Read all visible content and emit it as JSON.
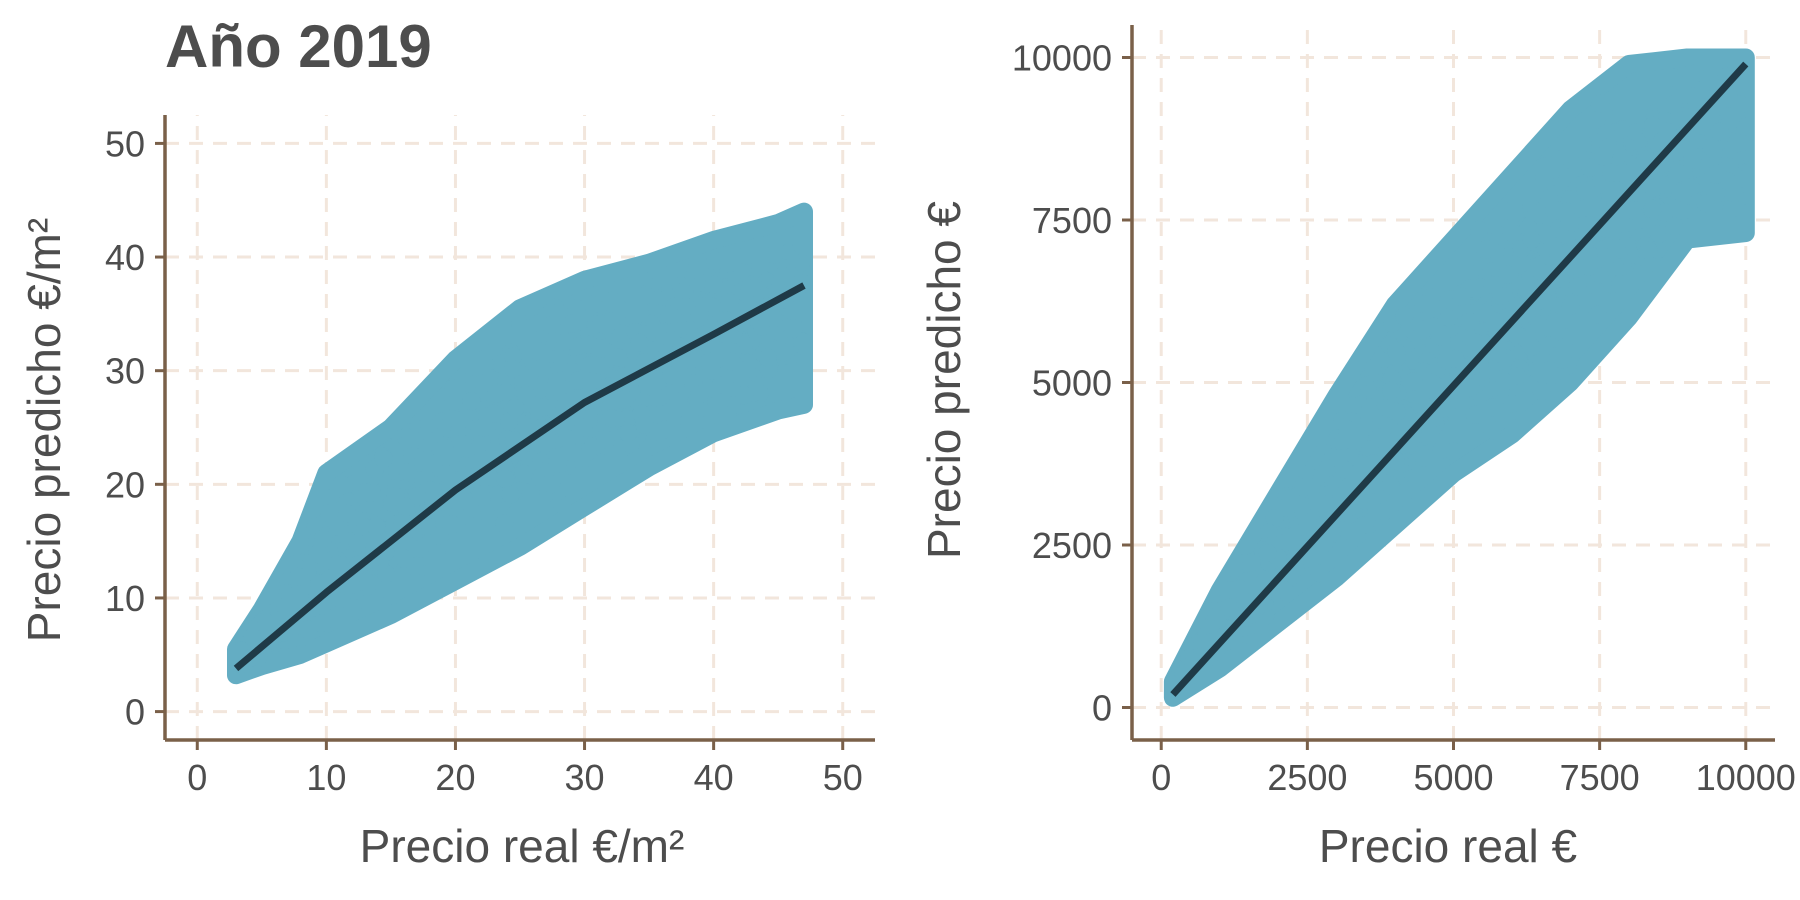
{
  "colors": {
    "points": "#64adc3",
    "line": "#1f3a47",
    "axis": "#7a6049",
    "grid": "#f2e6dc",
    "text": "#4d4d4d"
  },
  "chart_data": [
    {
      "type": "scatter",
      "title": "Año 2019",
      "xlabel": "Precio real  €/m²",
      "ylabel": "Precio predicho €/m²",
      "xlim": [
        -2.5,
        52.5
      ],
      "ylim": [
        -2.5,
        52.5
      ],
      "x_ticks": [
        0,
        10,
        20,
        30,
        40,
        50
      ],
      "y_ticks": [
        0,
        10,
        20,
        30,
        40,
        50
      ],
      "grid": true,
      "series": [
        {
          "kind": "points",
          "band": {
            "x": [
              3,
              5,
              8,
              10,
              15,
              20,
              25,
              30,
              35,
              40,
              45,
              47
            ],
            "y_low": [
              3.2,
              4.0,
              5.0,
              6.0,
              8.5,
              11.5,
              14.5,
              18.0,
              21.5,
              24.5,
              26.5,
              27.0
            ],
            "y_high": [
              5.5,
              9.0,
              15.0,
              21.0,
              25.0,
              31.0,
              35.5,
              38.0,
              39.5,
              41.5,
              43.0,
              44.0
            ]
          }
        },
        {
          "kind": "fit-line",
          "x": [
            3,
            10,
            20,
            30,
            40,
            47
          ],
          "y": [
            3.8,
            10.5,
            19.5,
            27.2,
            33.2,
            37.5
          ]
        }
      ]
    },
    {
      "type": "scatter",
      "title": "",
      "xlabel": "Precio real  €",
      "ylabel": "Precio predicho €",
      "xlim": [
        -500,
        10500
      ],
      "ylim": [
        -500,
        10500
      ],
      "x_ticks": [
        0,
        2500,
        5000,
        7500,
        10000
      ],
      "y_ticks": [
        0,
        2500,
        5000,
        7500,
        10000
      ],
      "grid": true,
      "series": [
        {
          "kind": "points",
          "band": {
            "x": [
              200,
              1000,
              2000,
              3000,
              4000,
              5000,
              6000,
              7000,
              8000,
              9000,
              10000
            ],
            "y_low": [
              150,
              600,
              1300,
              2000,
              2800,
              3600,
              4200,
              5000,
              6000,
              7200,
              7300
            ],
            "y_high": [
              400,
              1800,
              3300,
              4800,
              6200,
              7200,
              8200,
              9200,
              9900,
              10000,
              10000
            ]
          }
        },
        {
          "kind": "fit-line",
          "x": [
            200,
            10000
          ],
          "y": [
            200,
            9900
          ]
        }
      ]
    }
  ]
}
